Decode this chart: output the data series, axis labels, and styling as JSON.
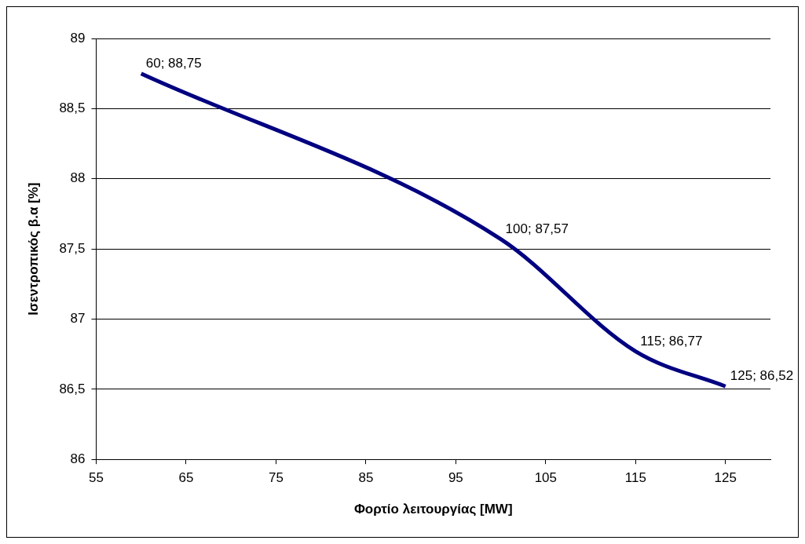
{
  "chart_data": {
    "type": "line",
    "xlabel": "Φορτίο λειτουργίας [MW]",
    "ylabel": "Ισεντροπικός β.α [%]",
    "x": [
      60,
      100,
      115,
      125
    ],
    "series": [
      {
        "color": "#000080",
        "values": [
          88.75,
          87.57,
          86.77,
          86.52
        ],
        "value_labels": [
          "60; 88,75",
          "100; 87,57",
          "115; 86,77",
          "125; 86,52"
        ]
      }
    ],
    "xlim": [
      55,
      130
    ],
    "xticks": [
      55,
      65,
      75,
      85,
      95,
      105,
      115,
      125
    ],
    "ylim": [
      86,
      89
    ],
    "yticks": [
      86,
      {
        "value": 86.5,
        "label": "86,5"
      },
      87,
      {
        "value": 87.5,
        "label": "87,5"
      },
      88,
      {
        "value": 88.5,
        "label": "88,5"
      },
      89
    ],
    "grid": "y",
    "legend": false,
    "marker": "none",
    "line_style": "solid"
  }
}
